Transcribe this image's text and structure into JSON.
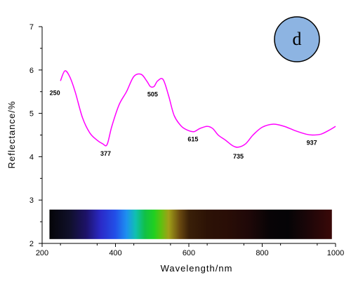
{
  "chart_data": {
    "type": "line",
    "xlabel": "Wavelength/nm",
    "ylabel": "Reflectance/%",
    "xlim": [
      200,
      1000
    ],
    "ylim": [
      2,
      7
    ],
    "x_ticks": [
      "200",
      "400",
      "600",
      "800",
      "1000"
    ],
    "y_ticks": [
      "2",
      "3",
      "4",
      "5",
      "6",
      "7"
    ],
    "panel_label": "d",
    "series": [
      {
        "color": "#ff00ff",
        "x": [
          250,
          262,
          275,
          290,
          310,
          330,
          350,
          365,
          377,
          390,
          410,
          430,
          450,
          470,
          485,
          495,
          505,
          515,
          530,
          545,
          560,
          580,
          600,
          615,
          630,
          650,
          665,
          680,
          700,
          720,
          735,
          755,
          775,
          800,
          830,
          860,
          890,
          920,
          937,
          960,
          980,
          1000
        ],
        "y": [
          5.75,
          5.98,
          5.85,
          5.5,
          4.9,
          4.55,
          4.38,
          4.3,
          4.28,
          4.7,
          5.2,
          5.5,
          5.85,
          5.9,
          5.75,
          5.62,
          5.62,
          5.75,
          5.78,
          5.4,
          4.95,
          4.7,
          4.6,
          4.58,
          4.65,
          4.7,
          4.65,
          4.5,
          4.38,
          4.25,
          4.22,
          4.3,
          4.5,
          4.68,
          4.75,
          4.7,
          4.6,
          4.52,
          4.5,
          4.52,
          4.6,
          4.7
        ]
      }
    ],
    "annotations": [
      {
        "text": "250",
        "x": 250,
        "y": 5.75
      },
      {
        "text": "377",
        "x": 377,
        "y": 4.28
      },
      {
        "text": "505",
        "x": 505,
        "y": 5.62
      },
      {
        "text": "615",
        "x": 615,
        "y": 4.58
      },
      {
        "text": "735",
        "x": 735,
        "y": 4.22
      },
      {
        "text": "937",
        "x": 937,
        "y": 4.5
      }
    ],
    "spectrum_band": {
      "x_range": [
        220,
        990
      ],
      "y_range": [
        2.1,
        2.78
      ],
      "stops": [
        {
          "x": 220,
          "color": "#050508"
        },
        {
          "x": 275,
          "color": "#10102a"
        },
        {
          "x": 320,
          "color": "#1d1268"
        },
        {
          "x": 360,
          "color": "#2a2ac8"
        },
        {
          "x": 400,
          "color": "#2250e8"
        },
        {
          "x": 430,
          "color": "#1e90f0"
        },
        {
          "x": 455,
          "color": "#10c0b0"
        },
        {
          "x": 480,
          "color": "#10c048"
        },
        {
          "x": 505,
          "color": "#20d020"
        },
        {
          "x": 525,
          "color": "#60c010"
        },
        {
          "x": 545,
          "color": "#a0a018"
        },
        {
          "x": 575,
          "color": "#6a4a10"
        },
        {
          "x": 600,
          "color": "#3a2008"
        },
        {
          "x": 650,
          "color": "#2c1206"
        },
        {
          "x": 700,
          "color": "#2a0e06"
        },
        {
          "x": 760,
          "color": "#200808"
        },
        {
          "x": 820,
          "color": "#080406"
        },
        {
          "x": 870,
          "color": "#050406"
        },
        {
          "x": 920,
          "color": "#1a0608"
        },
        {
          "x": 990,
          "color": "#3a0808"
        }
      ]
    },
    "grid": false,
    "legend": "none"
  }
}
